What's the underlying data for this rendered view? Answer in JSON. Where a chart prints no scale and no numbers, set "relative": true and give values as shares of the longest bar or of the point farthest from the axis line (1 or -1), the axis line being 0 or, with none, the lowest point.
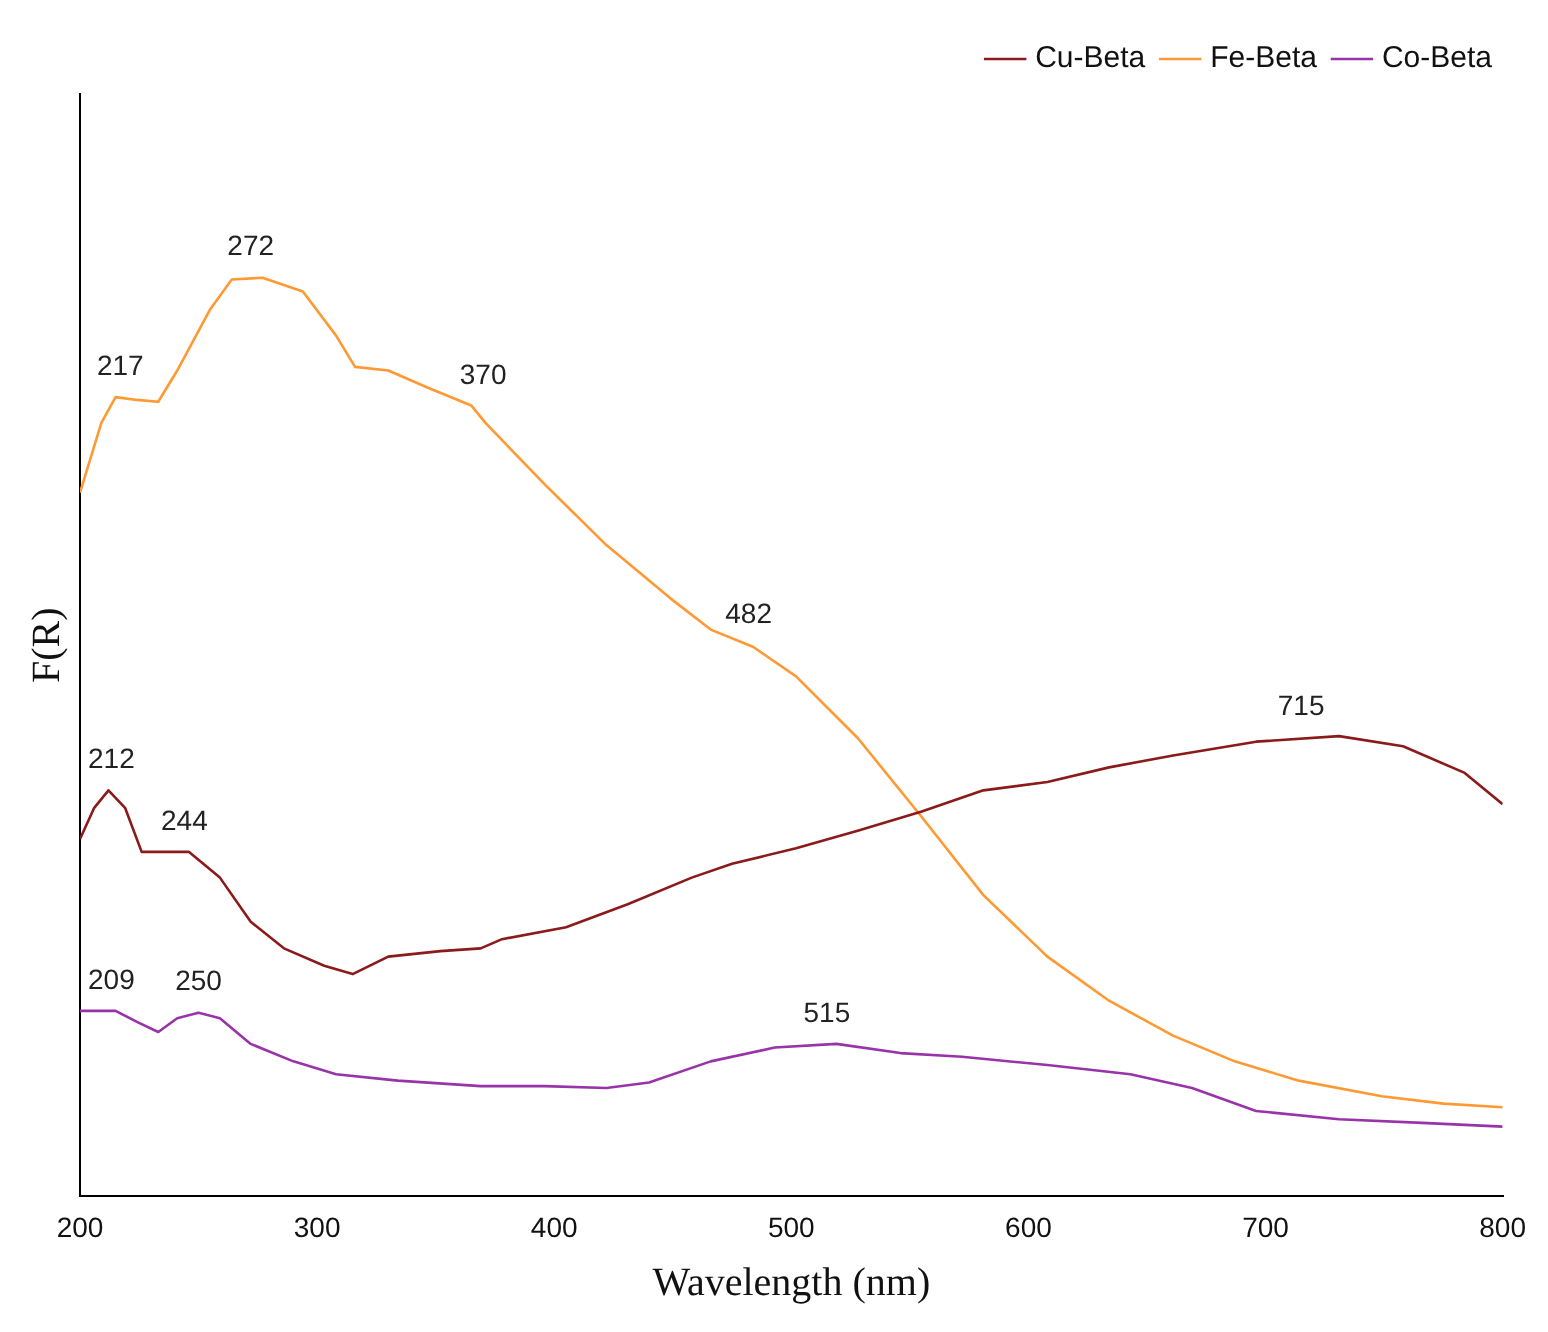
{
  "chart_data": {
    "type": "line",
    "xlabel": "Wavelength (nm)",
    "ylabel": "F(R)",
    "relative": true,
    "xlim": [
      200,
      800
    ],
    "xticks": [
      200,
      300,
      400,
      500,
      600,
      700,
      800
    ],
    "grid": false,
    "legend": "top right",
    "marker": "none",
    "line_style": "solid",
    "series": [
      {
        "name": "Cu-Beta",
        "color": "#8b1a1a",
        "x": [
          200,
          206,
          212,
          219,
          226,
          235,
          246,
          259,
          272,
          286,
          303,
          315,
          330,
          352,
          369,
          378,
          405,
          431,
          458,
          475,
          502,
          528,
          555,
          581,
          608,
          634,
          661,
          696,
          731,
          758,
          784,
          800
        ],
        "values": [
          0.389,
          0.423,
          0.442,
          0.423,
          0.375,
          0.375,
          0.375,
          0.347,
          0.299,
          0.27,
          0.251,
          0.242,
          0.261,
          0.267,
          0.27,
          0.28,
          0.293,
          0.318,
          0.347,
          0.362,
          0.379,
          0.398,
          0.419,
          0.442,
          0.451,
          0.467,
          0.48,
          0.495,
          0.501,
          0.49,
          0.461,
          0.427
        ]
      },
      {
        "name": "Fe-Beta",
        "color": "#ff9933",
        "x": [
          200,
          209,
          215,
          224,
          233,
          241,
          255,
          264,
          277,
          294,
          308,
          316,
          330,
          347,
          365,
          371,
          396,
          422,
          449,
          466,
          484,
          502,
          528,
          555,
          581,
          608,
          634,
          661,
          687,
          714,
          749,
          775,
          800
        ],
        "values": [
          0.766,
          0.842,
          0.87,
          0.867,
          0.865,
          0.899,
          0.966,
          0.998,
          1.0,
          0.985,
          0.937,
          0.903,
          0.899,
          0.88,
          0.861,
          0.842,
          0.775,
          0.709,
          0.651,
          0.617,
          0.598,
          0.566,
          0.499,
          0.413,
          0.328,
          0.261,
          0.213,
          0.175,
          0.147,
          0.126,
          0.109,
          0.101,
          0.097
        ]
      },
      {
        "name": "Co-Beta",
        "color": "#9933aa",
        "x": [
          200,
          215,
          224,
          233,
          241,
          250,
          259,
          272,
          290,
          308,
          334,
          369,
          396,
          422,
          440,
          466,
          493,
          519,
          546,
          572,
          608,
          643,
          669,
          696,
          731,
          766,
          800
        ],
        "values": [
          0.202,
          0.202,
          0.19,
          0.179,
          0.194,
          0.2,
          0.194,
          0.166,
          0.147,
          0.133,
          0.126,
          0.12,
          0.12,
          0.118,
          0.124,
          0.147,
          0.162,
          0.166,
          0.156,
          0.152,
          0.143,
          0.133,
          0.118,
          0.093,
          0.084,
          0.08,
          0.076
        ]
      }
    ],
    "annotations": [
      {
        "text": "217",
        "x": 217,
        "y": 0.87
      },
      {
        "text": "272",
        "x": 272,
        "y": 1.0
      },
      {
        "text": "370",
        "x": 370,
        "y": 0.86
      },
      {
        "text": "482",
        "x": 482,
        "y": 0.6
      },
      {
        "text": "212",
        "x": 212,
        "y": 0.442
      },
      {
        "text": "244",
        "x": 244,
        "y": 0.375
      },
      {
        "text": "715",
        "x": 715,
        "y": 0.5
      },
      {
        "text": "209",
        "x": 209,
        "y": 0.202
      },
      {
        "text": "250",
        "x": 250,
        "y": 0.2
      },
      {
        "text": "515",
        "x": 515,
        "y": 0.166
      }
    ]
  }
}
